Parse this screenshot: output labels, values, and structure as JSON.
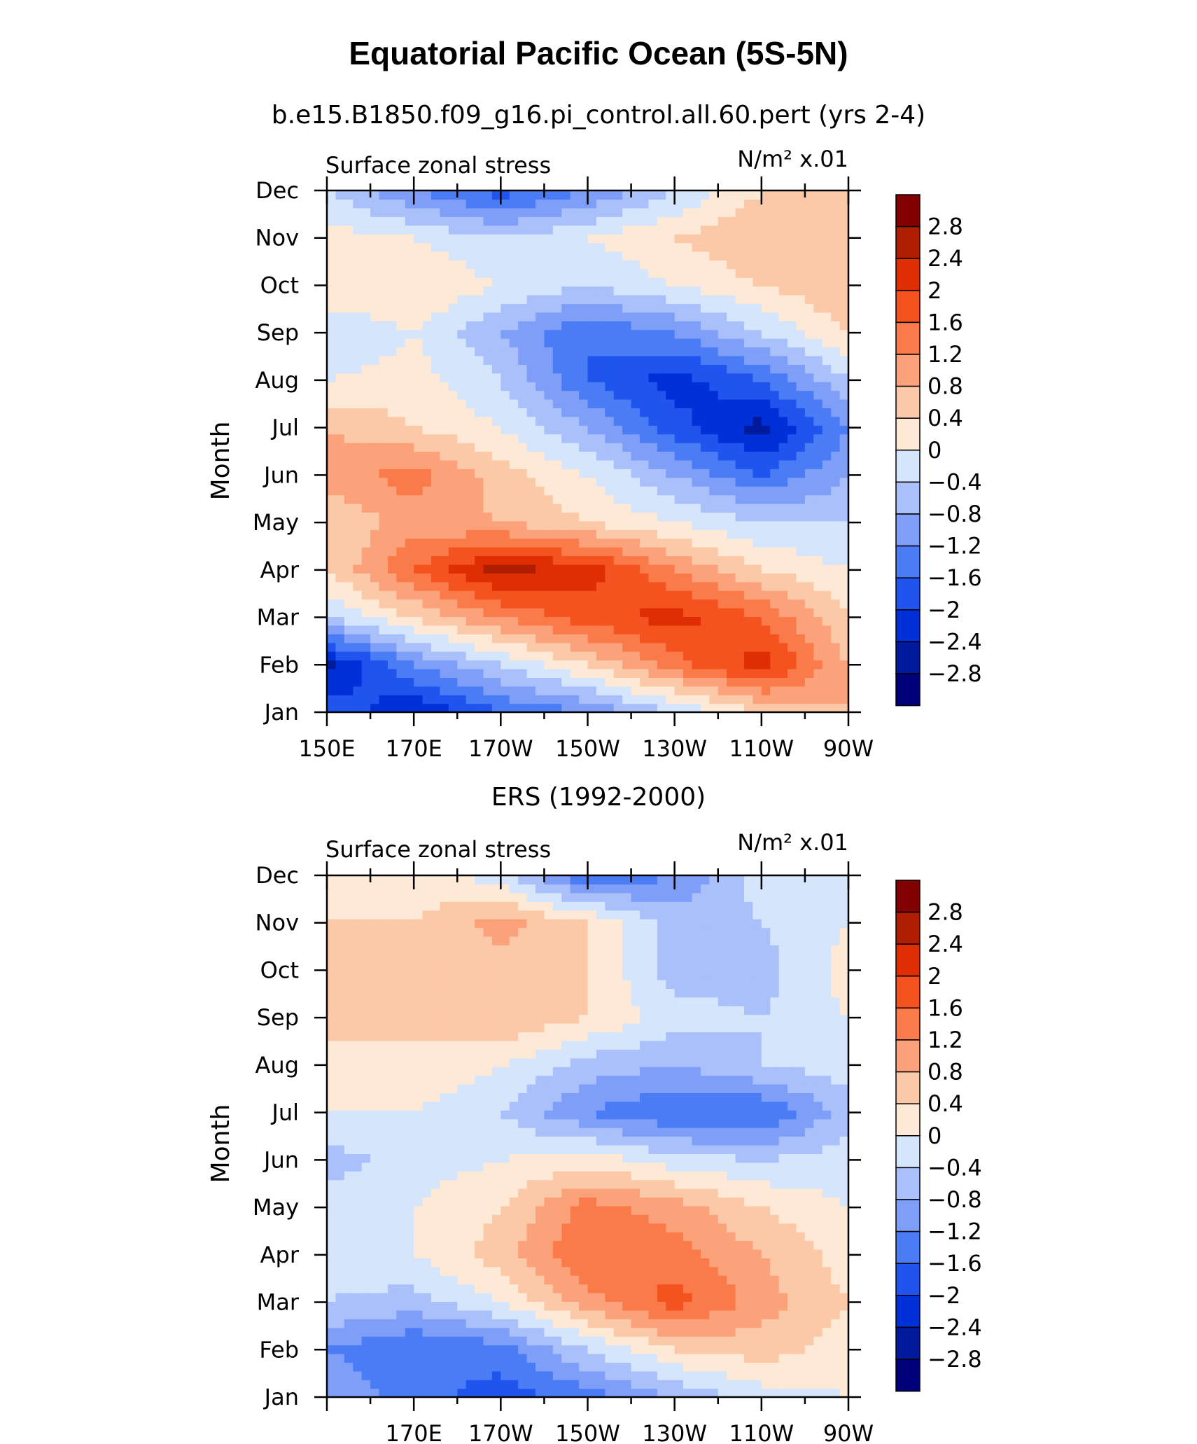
{
  "figure": {
    "title": "Equatorial Pacific Ocean (5S-5N)"
  },
  "chart_data": [
    {
      "type": "heatmap",
      "title": "b.e15.B1850.f09_g16.pi_control.all.60.pert (yrs 2-4)",
      "left_label": "Surface zonal stress",
      "units_label": "N/m² x.01",
      "xlabel": "",
      "ylabel": "Month",
      "x_tick_labels": [
        "150E",
        "170E",
        "170W",
        "150W",
        "130W",
        "110W",
        "90W"
      ],
      "y_tick_labels": [
        "Jan",
        "Feb",
        "Mar",
        "Apr",
        "May",
        "Jun",
        "Jul",
        "Aug",
        "Sep",
        "Oct",
        "Nov",
        "Dec"
      ],
      "x": [
        150,
        170,
        190,
        210,
        230,
        250,
        270
      ],
      "y": [
        1,
        2,
        3,
        4,
        5,
        6,
        7,
        8,
        9,
        10,
        11,
        12
      ],
      "z": [
        [
          -1.6,
          -2.4,
          -1.6,
          -1.2,
          -0.4,
          0.4,
          0.8
        ],
        [
          -2.6,
          -1.2,
          -0.4,
          0.4,
          1.4,
          2.2,
          0.8
        ],
        [
          -0.4,
          0.4,
          1.2,
          1.8,
          2.2,
          1.6,
          0.4
        ],
        [
          0.4,
          1.6,
          2.6,
          2.2,
          1.2,
          0.4,
          0.0
        ],
        [
          0.4,
          1.0,
          0.8,
          0.4,
          0.0,
          -0.4,
          -0.4
        ],
        [
          1.0,
          1.4,
          0.6,
          0.0,
          -0.8,
          -1.6,
          -0.8
        ],
        [
          0.8,
          0.4,
          0.0,
          -0.8,
          -1.8,
          -2.6,
          -1.2
        ],
        [
          0.0,
          0.2,
          -0.4,
          -1.6,
          -2.2,
          -1.6,
          -0.4
        ],
        [
          -0.4,
          0.0,
          -0.8,
          -1.6,
          -1.2,
          -0.4,
          0.4
        ],
        [
          0.4,
          0.4,
          0.0,
          -0.4,
          0.0,
          0.4,
          0.8
        ],
        [
          0.2,
          0.0,
          -0.4,
          0.0,
          0.4,
          0.8,
          0.8
        ],
        [
          -0.4,
          -1.2,
          -1.8,
          -1.2,
          -0.4,
          0.4,
          0.4
        ]
      ],
      "colorbar_labels": [
        "2.8",
        "2.4",
        "2",
        "1.6",
        "1.2",
        "0.8",
        "0.4",
        "0",
        "-0.4",
        "-0.8",
        "-1.2",
        "-1.6",
        "-2",
        "-2.4",
        "-2.8"
      ]
    },
    {
      "type": "heatmap",
      "title": "ERS (1992-2000)",
      "left_label": "Surface zonal stress",
      "units_label": "N/m² x.01",
      "xlabel": "",
      "ylabel": "Month",
      "x_tick_labels": [
        "170E",
        "170W",
        "150W",
        "130W",
        "110W",
        "90W"
      ],
      "y_tick_labels": [
        "Jan",
        "Feb",
        "Mar",
        "Apr",
        "May",
        "Jun",
        "Jul",
        "Aug",
        "Sep",
        "Oct",
        "Nov",
        "Dec"
      ],
      "x": [
        150,
        170,
        190,
        210,
        230,
        250,
        270
      ],
      "y": [
        1,
        2,
        3,
        4,
        5,
        6,
        7,
        8,
        9,
        10,
        11,
        12
      ],
      "z": [
        [
          -0.8,
          -1.4,
          -1.8,
          -1.4,
          -0.8,
          -0.2,
          0.0
        ],
        [
          -1.2,
          -1.6,
          -1.4,
          -0.4,
          0.4,
          0.6,
          0.2
        ],
        [
          -0.4,
          -0.6,
          0.0,
          1.0,
          1.8,
          1.0,
          0.4
        ],
        [
          -0.2,
          0.0,
          0.6,
          1.6,
          1.4,
          0.8,
          0.2
        ],
        [
          -0.2,
          0.0,
          0.4,
          1.4,
          1.0,
          0.4,
          0.0
        ],
        [
          -0.6,
          -0.2,
          0.0,
          0.2,
          -0.2,
          -0.4,
          -0.2
        ],
        [
          0.0,
          0.0,
          -0.4,
          -1.2,
          -1.6,
          -1.6,
          -0.6
        ],
        [
          0.2,
          0.4,
          0.0,
          -0.6,
          -0.8,
          -0.4,
          -0.2
        ],
        [
          0.6,
          0.4,
          0.8,
          0.4,
          -0.2,
          -0.4,
          0.0
        ],
        [
          0.4,
          0.4,
          0.6,
          0.4,
          -0.6,
          -0.6,
          0.2
        ],
        [
          0.4,
          0.4,
          1.0,
          0.4,
          -0.6,
          -0.4,
          0.0
        ],
        [
          0.4,
          0.2,
          -0.2,
          -1.6,
          -1.2,
          -0.2,
          0.0
        ]
      ],
      "colorbar_labels": [
        "2.8",
        "2.4",
        "2",
        "1.6",
        "1.2",
        "0.8",
        "0.4",
        "0",
        "-0.4",
        "-0.8",
        "-1.2",
        "-1.6",
        "-2",
        "-2.4",
        "-2.8"
      ]
    }
  ],
  "colors": {
    "scale": [
      "#00007a",
      "#001a9c",
      "#0030d8",
      "#1f55ee",
      "#4a7cf5",
      "#7e9ef8",
      "#a9c0fb",
      "#d5e6fc",
      "#fde9d6",
      "#fcc9a8",
      "#fca27a",
      "#fb7a4a",
      "#f4521f",
      "#e02e04",
      "#b01e00",
      "#820000"
    ],
    "levels": [
      -2.8,
      -2.4,
      -2.0,
      -1.6,
      -1.2,
      -0.8,
      -0.4,
      0,
      0.4,
      0.8,
      1.2,
      1.6,
      2.0,
      2.4,
      2.8
    ]
  }
}
